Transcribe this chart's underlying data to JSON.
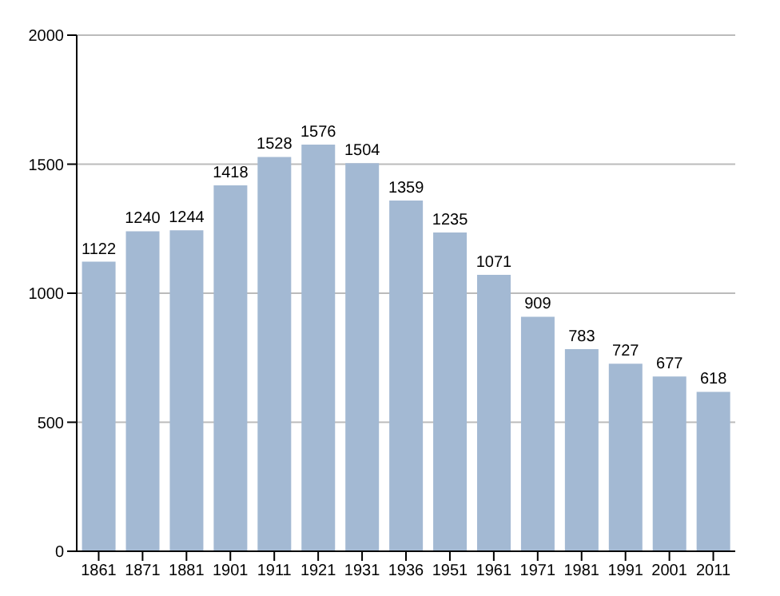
{
  "chart_data": {
    "type": "bar",
    "categories": [
      "1861",
      "1871",
      "1881",
      "1901",
      "1911",
      "1921",
      "1931",
      "1936",
      "1951",
      "1961",
      "1971",
      "1981",
      "1991",
      "2001",
      "2011"
    ],
    "values": [
      1122,
      1240,
      1244,
      1418,
      1528,
      1576,
      1504,
      1359,
      1235,
      1071,
      909,
      783,
      727,
      677,
      618
    ],
    "color": "#a3b9d3",
    "ylim": [
      0,
      2000
    ],
    "yticks": [
      0,
      500,
      1000,
      1500,
      2000
    ],
    "grid": "y",
    "data_labels": true
  }
}
